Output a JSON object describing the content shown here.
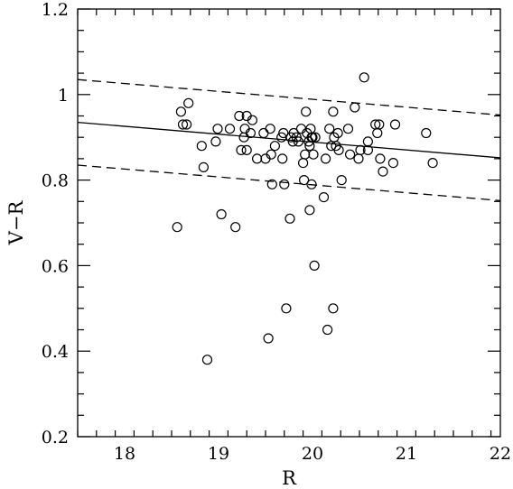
{
  "chart_data": {
    "type": "scatter",
    "title": "",
    "xlabel": "R",
    "ylabel": "V−R",
    "xlim": [
      17.5,
      22
    ],
    "ylim": [
      0.2,
      1.2
    ],
    "xticks": [
      18,
      19,
      20,
      21,
      22
    ],
    "xtick_labels": [
      "18",
      "19",
      "20",
      "21",
      "22"
    ],
    "yticks": [
      0.2,
      0.4,
      0.6,
      0.8,
      1.0,
      1.2
    ],
    "ytick_labels": [
      "0.2",
      "0.4",
      "0.6",
      "0.8",
      "1",
      "1.2"
    ],
    "grid": false,
    "legend": "none",
    "marker": "open-circle",
    "color": "#000000",
    "points": [
      [
        18.56,
        0.69
      ],
      [
        18.6,
        0.96
      ],
      [
        18.62,
        0.93
      ],
      [
        18.66,
        0.93
      ],
      [
        18.68,
        0.98
      ],
      [
        18.82,
        0.88
      ],
      [
        18.84,
        0.83
      ],
      [
        18.88,
        0.38
      ],
      [
        18.97,
        0.89
      ],
      [
        18.99,
        0.92
      ],
      [
        19.03,
        0.72
      ],
      [
        19.12,
        0.92
      ],
      [
        19.18,
        0.69
      ],
      [
        19.22,
        0.95
      ],
      [
        19.24,
        0.87
      ],
      [
        19.27,
        0.9
      ],
      [
        19.28,
        0.92
      ],
      [
        19.3,
        0.95
      ],
      [
        19.3,
        0.87
      ],
      [
        19.34,
        0.91
      ],
      [
        19.36,
        0.94
      ],
      [
        19.41,
        0.85
      ],
      [
        19.48,
        0.91
      ],
      [
        19.5,
        0.85
      ],
      [
        19.53,
        0.43
      ],
      [
        19.55,
        0.92
      ],
      [
        19.56,
        0.86
      ],
      [
        19.57,
        0.79
      ],
      [
        19.6,
        0.88
      ],
      [
        19.67,
        0.9
      ],
      [
        19.68,
        0.85
      ],
      [
        19.69,
        0.91
      ],
      [
        19.7,
        0.79
      ],
      [
        19.72,
        0.5
      ],
      [
        19.76,
        0.71
      ],
      [
        19.77,
        0.9
      ],
      [
        19.79,
        0.89
      ],
      [
        19.8,
        0.91
      ],
      [
        19.83,
        0.9
      ],
      [
        19.85,
        0.89
      ],
      [
        19.88,
        0.92
      ],
      [
        19.9,
        0.84
      ],
      [
        19.91,
        0.8
      ],
      [
        19.92,
        0.86
      ],
      [
        19.93,
        0.96
      ],
      [
        19.94,
        0.91
      ],
      [
        19.96,
        0.89
      ],
      [
        19.97,
        0.73
      ],
      [
        19.97,
        0.88
      ],
      [
        19.98,
        0.92
      ],
      [
        19.99,
        0.9
      ],
      [
        19.99,
        0.79
      ],
      [
        20.0,
        0.9
      ],
      [
        20.01,
        0.86
      ],
      [
        20.02,
        0.6
      ],
      [
        20.03,
        0.9
      ],
      [
        20.12,
        0.76
      ],
      [
        20.14,
        0.85
      ],
      [
        20.16,
        0.45
      ],
      [
        20.18,
        0.92
      ],
      [
        20.2,
        0.88
      ],
      [
        20.22,
        0.96
      ],
      [
        20.22,
        0.5
      ],
      [
        20.23,
        0.9
      ],
      [
        20.25,
        0.88
      ],
      [
        20.27,
        0.91
      ],
      [
        20.28,
        0.87
      ],
      [
        20.31,
        0.8
      ],
      [
        20.38,
        0.92
      ],
      [
        20.4,
        0.86
      ],
      [
        20.45,
        0.97
      ],
      [
        20.49,
        0.85
      ],
      [
        20.51,
        0.87
      ],
      [
        20.55,
        1.04
      ],
      [
        20.59,
        0.89
      ],
      [
        20.59,
        0.87
      ],
      [
        20.67,
        0.93
      ],
      [
        20.69,
        0.91
      ],
      [
        20.71,
        0.93
      ],
      [
        20.72,
        0.85
      ],
      [
        20.75,
        0.82
      ],
      [
        20.86,
        0.84
      ],
      [
        20.88,
        0.93
      ],
      [
        21.21,
        0.91
      ],
      [
        21.28,
        0.84
      ]
    ],
    "lines": [
      {
        "style": "solid",
        "x": [
          17.5,
          22
        ],
        "y": [
          0.935,
          0.852
        ]
      },
      {
        "style": "dashed",
        "x": [
          17.5,
          22
        ],
        "y": [
          1.035,
          0.952
        ]
      },
      {
        "style": "dashed",
        "x": [
          17.5,
          22
        ],
        "y": [
          0.835,
          0.752
        ]
      }
    ]
  }
}
